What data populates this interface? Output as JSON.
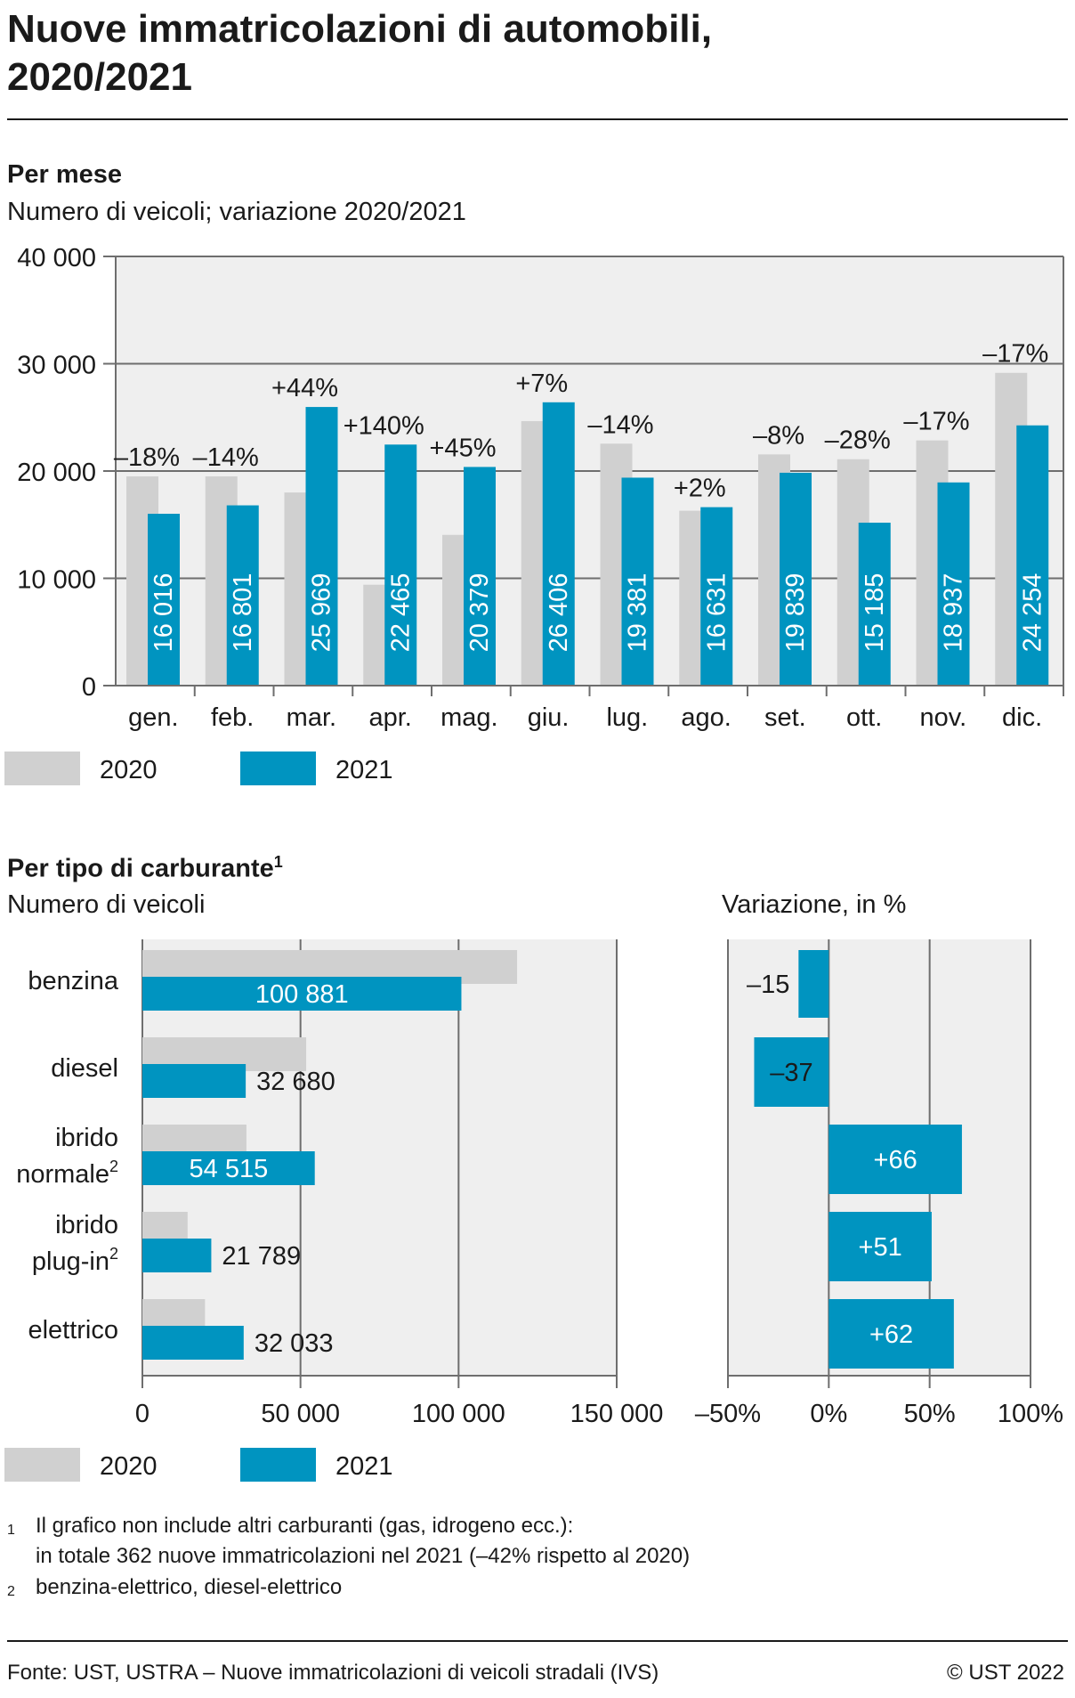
{
  "header": {
    "title_line1": "Nuove immatricolazioni di automobili,",
    "title_line2": "2020/2021"
  },
  "monthly": {
    "heading": "Per mese",
    "subtitle": "Numero di veicoli; variazione 2020/2021",
    "legend": [
      "2020",
      "2021"
    ]
  },
  "fuel": {
    "heading": "Per tipo di carburante",
    "heading_sup": "1",
    "subtitle_left": "Numero di veicoli",
    "subtitle_right": "Variazione, in %",
    "legend": [
      "2020",
      "2021"
    ]
  },
  "colors": {
    "series_2020": "#d0d0d0",
    "series_2021": "#0094c0",
    "plot_bg": "#efefef",
    "grid": "#6e6e6e"
  },
  "footnotes": [
    {
      "mark": "1",
      "lines": [
        "Il grafico non include altri carburanti (gas, idrogeno ecc.):",
        "in totale 362 nuove immatricolazioni nel 2021 (–42% rispetto al 2020)"
      ]
    },
    {
      "mark": "2",
      "lines": [
        "benzina-elettrico, diesel-elettrico"
      ]
    }
  ],
  "footer": {
    "source": "Fonte: UST, USTRA – Nuove immatricolazioni di veicoli stradali (IVS)",
    "copyright": "© UST 2022"
  },
  "chart_data": [
    {
      "type": "bar",
      "categories": [
        "gen.",
        "feb.",
        "mar.",
        "apr.",
        "mag.",
        "giu.",
        "lug.",
        "ago.",
        "set.",
        "ott.",
        "nov.",
        "dic."
      ],
      "series": [
        {
          "name": "2020",
          "values": [
            19500,
            19500,
            18000,
            9400,
            14050,
            24650,
            22550,
            16300,
            21550,
            21100,
            22850,
            29150
          ]
        },
        {
          "name": "2021",
          "values": [
            16016,
            16801,
            25969,
            22465,
            20379,
            26406,
            19381,
            16631,
            19839,
            15185,
            18937,
            24254
          ]
        }
      ],
      "value_labels": [
        "16 016",
        "16 801",
        "25 969",
        "22 465",
        "20 379",
        "26 406",
        "19 381",
        "16 631",
        "19 839",
        "15 185",
        "18 937",
        "24 254"
      ],
      "change_labels": [
        "–18%",
        "–14%",
        "+44%",
        "+140%",
        "+45%",
        "+7%",
        "–14%",
        "+2%",
        "–8%",
        "–28%",
        "–17%",
        "–17%"
      ],
      "ylim": [
        0,
        40000
      ],
      "yticks": [
        0,
        10000,
        20000,
        30000,
        40000
      ],
      "ytick_labels": [
        "0",
        "10 000",
        "20 000",
        "30 000",
        "40 000"
      ],
      "grid": true,
      "legend_position": "bottom-left"
    },
    {
      "type": "bar",
      "orientation": "horizontal",
      "categories": [
        [
          "benzina"
        ],
        [
          "diesel"
        ],
        [
          "ibrido",
          "normale"
        ],
        [
          "ibrido",
          "plug-in"
        ],
        [
          "elettrico"
        ]
      ],
      "category_sup": [
        "",
        "",
        "2",
        "2",
        ""
      ],
      "series": [
        {
          "name": "2020",
          "values": [
            118500,
            51800,
            32900,
            14300,
            19800
          ]
        },
        {
          "name": "2021",
          "values": [
            100881,
            32680,
            54515,
            21789,
            32033
          ]
        }
      ],
      "value_labels": [
        "100 881",
        "32 680",
        "54 515",
        "21 789",
        "32 033"
      ],
      "xlim": [
        0,
        150000
      ],
      "xticks": [
        0,
        50000,
        100000,
        150000
      ],
      "xtick_labels": [
        "0",
        "50 000",
        "100 000",
        "150 000"
      ],
      "grid": true,
      "legend_position": "bottom-left"
    },
    {
      "type": "bar",
      "orientation": "horizontal",
      "categories": [
        "benzina",
        "diesel",
        "ibrido normale",
        "ibrido plug-in",
        "elettrico"
      ],
      "values": [
        -15,
        -37,
        66,
        51,
        62
      ],
      "value_labels": [
        "–15",
        "–37",
        "+66",
        "+51",
        "+62"
      ],
      "xlim": [
        -50,
        100
      ],
      "xticks": [
        -50,
        0,
        50,
        100
      ],
      "xtick_labels": [
        "–50%",
        "0%",
        "50%",
        "100%"
      ],
      "grid": true
    }
  ]
}
